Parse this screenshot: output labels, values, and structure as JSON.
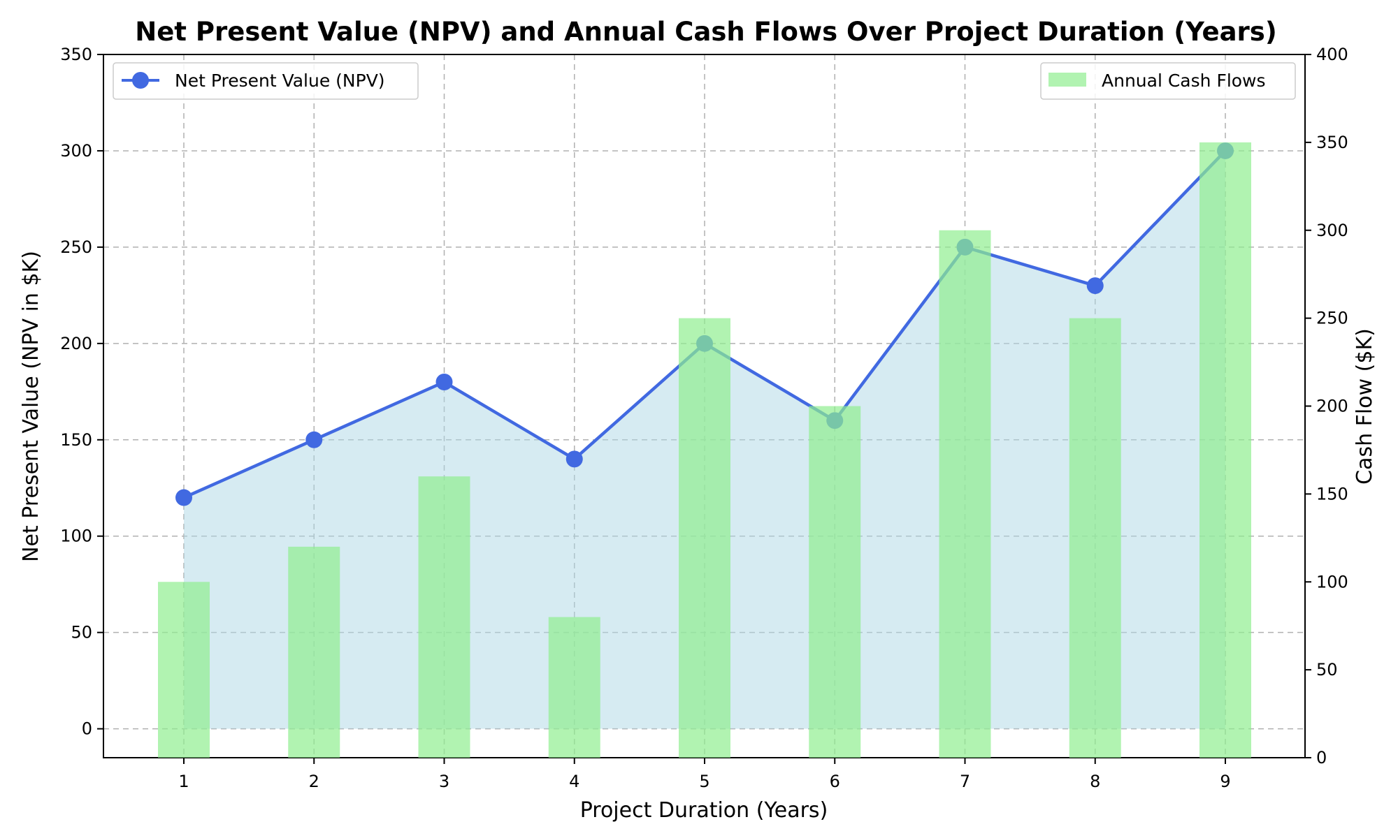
{
  "chart_data": {
    "type": "bar+line",
    "title": "Net Present Value (NPV) and Annual Cash Flows Over Project Duration (Years)",
    "xlabel": "Project Duration (Years)",
    "ylabel_left": "Net Present Value (NPV in $K)",
    "ylabel_right": "Cash Flow ($K)",
    "x": [
      1,
      2,
      3,
      4,
      5,
      6,
      7,
      8,
      9
    ],
    "x_tick_labels": [
      "1",
      "2",
      "3",
      "4",
      "5",
      "6",
      "7",
      "8",
      "9"
    ],
    "y_left_ticks": [
      0,
      50,
      100,
      150,
      200,
      250,
      300,
      350
    ],
    "y_left_tick_labels": [
      "0",
      "50",
      "100",
      "150",
      "200",
      "250",
      "300",
      "350"
    ],
    "y_right_ticks": [
      0,
      50,
      100,
      150,
      200,
      250,
      300,
      350,
      400
    ],
    "y_right_tick_labels": [
      "0",
      "50",
      "100",
      "150",
      "200",
      "250",
      "300",
      "350",
      "400"
    ],
    "ylim_left": [
      -15,
      350
    ],
    "ylim_right": [
      0,
      400
    ],
    "grid": true,
    "series": [
      {
        "name": "Net Present Value (NPV)",
        "type": "line",
        "axis": "left",
        "color": "#4169e1",
        "fill_color": "#add8e6",
        "values": [
          120,
          150,
          180,
          140,
          200,
          160,
          250,
          230,
          300
        ]
      },
      {
        "name": "Annual Cash Flows",
        "type": "bar",
        "axis": "right",
        "color": "#90ee90",
        "values": [
          100,
          120,
          160,
          80,
          250,
          200,
          300,
          250,
          350
        ]
      }
    ],
    "legend_line_position": "top-left",
    "legend_bar_position": "top-right"
  }
}
